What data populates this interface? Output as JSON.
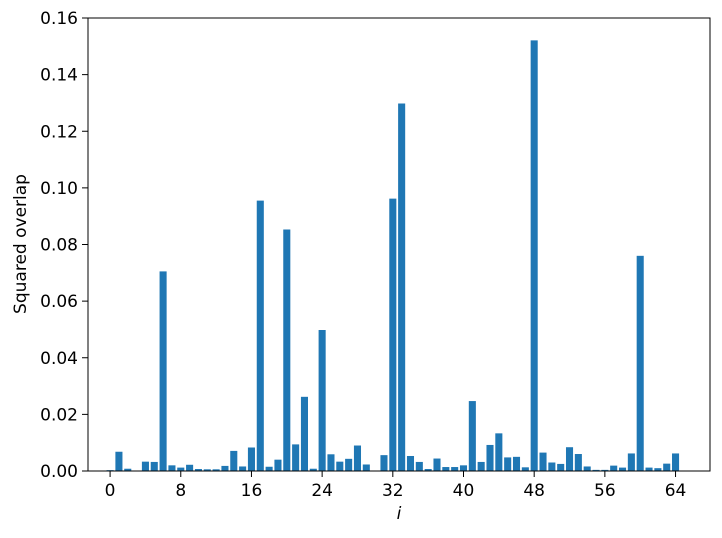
{
  "chart_data": {
    "type": "bar",
    "xlabel": "i",
    "ylabel": "Squared overlap",
    "x": [
      0,
      1,
      2,
      3,
      4,
      5,
      6,
      7,
      8,
      9,
      10,
      11,
      12,
      13,
      14,
      15,
      16,
      17,
      18,
      19,
      20,
      21,
      22,
      23,
      24,
      25,
      26,
      27,
      28,
      29,
      30,
      31,
      32,
      33,
      34,
      35,
      36,
      37,
      38,
      39,
      40,
      41,
      42,
      43,
      44,
      45,
      46,
      47,
      48,
      49,
      50,
      51,
      52,
      53,
      54,
      55,
      56,
      57,
      58,
      59,
      60,
      61,
      62,
      63,
      64
    ],
    "values": [
      0.0003,
      0.0068,
      0.0008,
      0.0001,
      0.0033,
      0.0032,
      0.0705,
      0.002,
      0.0012,
      0.0022,
      0.0007,
      0.0006,
      0.0006,
      0.0018,
      0.0071,
      0.0016,
      0.0083,
      0.0955,
      0.0015,
      0.004,
      0.0853,
      0.0094,
      0.0262,
      0.0008,
      0.0498,
      0.0059,
      0.0033,
      0.0043,
      0.009,
      0.0023,
      0.0001,
      0.0056,
      0.0962,
      0.1298,
      0.0053,
      0.0032,
      0.0007,
      0.0044,
      0.0014,
      0.0014,
      0.002,
      0.0247,
      0.0032,
      0.0092,
      0.0133,
      0.0048,
      0.005,
      0.0013,
      0.1521,
      0.0065,
      0.003,
      0.0025,
      0.0084,
      0.006,
      0.0016,
      0.0004,
      0.0004,
      0.0019,
      0.0012,
      0.0062,
      0.076,
      0.0012,
      0.001,
      0.0026,
      0.0062
    ],
    "color": "#1f77b4",
    "xlim": [
      -2.5,
      67.9
    ],
    "xticks": [
      0,
      8,
      16,
      24,
      32,
      40,
      48,
      56,
      64
    ],
    "ylim": [
      0,
      0.16
    ],
    "yticks": [
      {
        "value": 0,
        "label": "0.00"
      },
      {
        "value": 0.02,
        "label": "0.02"
      },
      {
        "value": 0.04,
        "label": "0.04"
      },
      {
        "value": 0.06,
        "label": "0.06"
      },
      {
        "value": 0.08,
        "label": "0.08"
      },
      {
        "value": 0.1,
        "label": "0.10"
      },
      {
        "value": 0.12,
        "label": "0.12"
      },
      {
        "value": 0.14,
        "label": "0.14"
      },
      {
        "value": 0.16,
        "label": "0.16"
      }
    ],
    "bar_width": 0.8
  }
}
